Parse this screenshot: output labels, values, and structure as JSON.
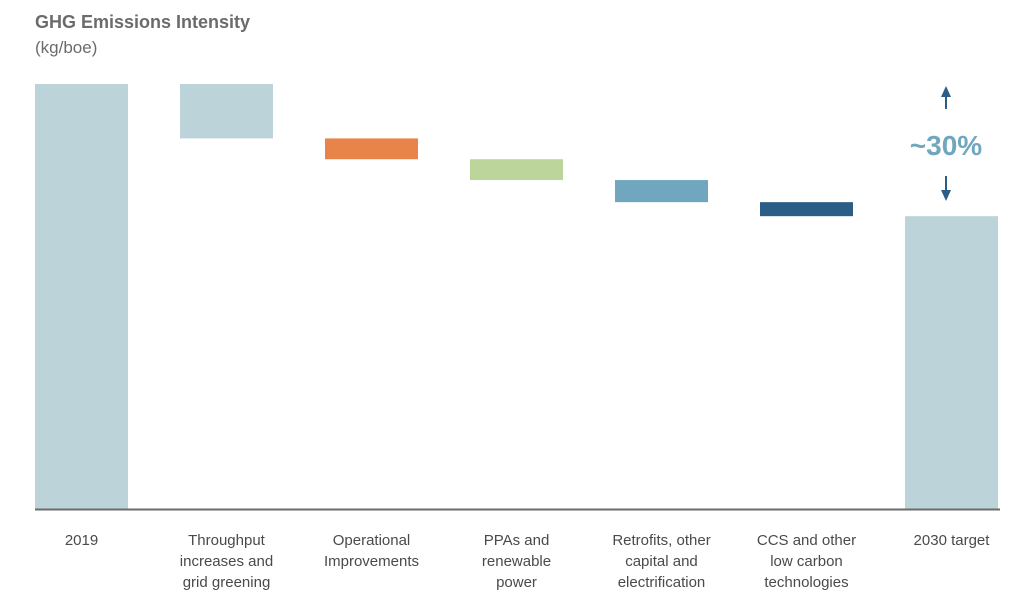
{
  "chart_data": {
    "type": "bar",
    "subtype": "waterfall",
    "title": "GHG Emissions Intensity",
    "subtitle": "(kg/boe)",
    "ylabel": "kg/boe",
    "xlabel": "",
    "axis_values_printed": false,
    "ylim": [
      0,
      100
    ],
    "grid": false,
    "legend": "none",
    "categories": [
      "2019",
      "Throughput increases and grid greening",
      "Operational Improvements",
      "PPAs and renewable power",
      "Retrofits, other capital and electrification",
      "CCS and other low carbon technologies",
      "2030 target"
    ],
    "category_label_lines": [
      [
        "2019"
      ],
      [
        "Throughput",
        "increases and",
        "grid greening"
      ],
      [
        "Operational",
        "Improvements"
      ],
      [
        "PPAs and",
        "renewable",
        "power"
      ],
      [
        "Retrofits, other",
        "capital and",
        "electrification"
      ],
      [
        "CCS and other",
        "low carbon",
        "technologies"
      ],
      [
        "2030 target"
      ]
    ],
    "bars": [
      {
        "kind": "total",
        "start": 0,
        "end": 100,
        "color": "#bcd4d9"
      },
      {
        "kind": "decrease",
        "start": 100,
        "end": 87.2,
        "color": "#bcd4d9"
      },
      {
        "kind": "decrease",
        "start": 87.2,
        "end": 82.3,
        "color": "#e8844a"
      },
      {
        "kind": "decrease",
        "start": 82.3,
        "end": 77.4,
        "color": "#bcd59b"
      },
      {
        "kind": "decrease",
        "start": 77.4,
        "end": 72.2,
        "color": "#70a7be"
      },
      {
        "kind": "decrease",
        "start": 72.2,
        "end": 68.9,
        "color": "#2b5d86"
      },
      {
        "kind": "total",
        "start": 0,
        "end": 68.9,
        "color": "#bcd4d9"
      }
    ],
    "annotation": {
      "text": "~30%",
      "color": "#70a7be",
      "arrow_color": "#2b5d86"
    },
    "colors": {
      "axis_line": "#6b6b6b",
      "label_text": "#4a4a4a"
    }
  }
}
